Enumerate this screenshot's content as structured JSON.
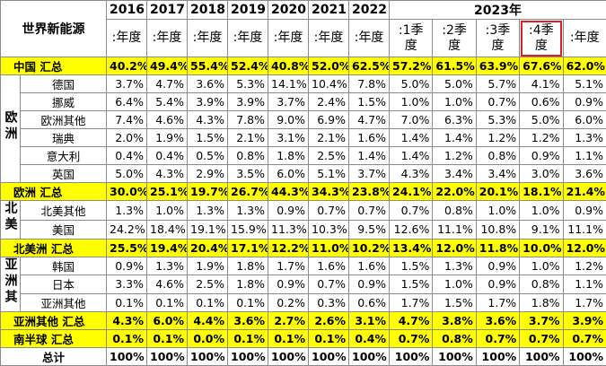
{
  "header": {
    "title": "世界新能源",
    "years": [
      "2016",
      "2017",
      "2018",
      "2019",
      "2020",
      "2021",
      "2022"
    ],
    "year_2023": "2023年",
    "periods": [
      ":年度",
      ":年度",
      ":年度",
      ":年度",
      ":年度",
      ":年度",
      ":年度",
      ":1季度",
      ":2季度",
      ":3季度",
      ":4季度",
      ":年度"
    ]
  },
  "rows": [
    {
      "total": "中国 汇总",
      "values": [
        "40.2%",
        "49.4%",
        "55.4%",
        "52.4%",
        "40.8%",
        "52.0%",
        "62.5%",
        "57.2%",
        "61.5%",
        "63.9%",
        "67.6%",
        "62.0%"
      ]
    },
    {
      "group": "欧洲",
      "rows": [
        {
          "label": "德国",
          "values": [
            "3.7%",
            "4.7%",
            "3.6%",
            "5.3%",
            "14.1%",
            "10.4%",
            "7.8%",
            "5.0%",
            "5.0%",
            "5.7%",
            "4.1%",
            "5.1%"
          ]
        },
        {
          "label": "挪威",
          "values": [
            "6.4%",
            "5.4%",
            "3.9%",
            "3.9%",
            "3.7%",
            "2.4%",
            "1.5%",
            "1.0%",
            "1.0%",
            "0.7%",
            "0.6%",
            "0.9%"
          ]
        },
        {
          "label": "欧洲其他",
          "values": [
            "7.4%",
            "4.6%",
            "4.3%",
            "7.8%",
            "9.0%",
            "6.9%",
            "4.7%",
            "7.0%",
            "6.3%",
            "5.3%",
            "5.0%",
            "6.0%"
          ]
        },
        {
          "label": "瑞典",
          "values": [
            "2.0%",
            "1.9%",
            "1.5%",
            "2.1%",
            "3.1%",
            "2.1%",
            "1.6%",
            "1.4%",
            "1.4%",
            "1.2%",
            "1.2%",
            "1.3%"
          ]
        },
        {
          "label": "意大利",
          "values": [
            "0.4%",
            "0.4%",
            "0.5%",
            "0.8%",
            "1.8%",
            "2.5%",
            "1.4%",
            "1.4%",
            "1.2%",
            "0.8%",
            "0.9%",
            "1.1%"
          ]
        },
        {
          "label": "英国",
          "values": [
            "5.0%",
            "4.3%",
            "2.9%",
            "3.5%",
            "6.0%",
            "5.1%",
            "3.7%",
            "4.3%",
            "3.4%",
            "3.4%",
            "3.0%",
            "3.6%"
          ]
        }
      ]
    },
    {
      "total": "欧洲 汇总",
      "values": [
        "30.0%",
        "25.1%",
        "19.7%",
        "26.7%",
        "44.3%",
        "34.3%",
        "23.8%",
        "24.1%",
        "22.0%",
        "20.1%",
        "18.1%",
        "21.4%"
      ]
    },
    {
      "group": "北美",
      "rows": [
        {
          "label": "北美其他",
          "values": [
            "1.3%",
            "1.0%",
            "1.3%",
            "1.3%",
            "0.9%",
            "0.7%",
            "0.7%",
            "0.7%",
            "0.8%",
            "1.0%",
            "1.0%",
            "0.9%"
          ]
        },
        {
          "label": "美国",
          "values": [
            "24.2%",
            "18.4%",
            "19.1%",
            "15.9%",
            "11.3%",
            "10.3%",
            "9.5%",
            "12.6%",
            "11.1%",
            "10.8%",
            "9.1%",
            "11.1%"
          ]
        }
      ]
    },
    {
      "total": "北美洲 汇总",
      "values": [
        "25.5%",
        "19.4%",
        "20.4%",
        "17.1%",
        "12.2%",
        "11.0%",
        "10.2%",
        "13.4%",
        "12.0%",
        "11.8%",
        "10.0%",
        "12.0%"
      ]
    },
    {
      "group": "亚洲其",
      "rows": [
        {
          "label": "韩国",
          "values": [
            "0.9%",
            "1.3%",
            "1.9%",
            "1.8%",
            "1.7%",
            "1.6%",
            "1.6%",
            "1.5%",
            "1.3%",
            "0.9%",
            "1.0%",
            "1.2%"
          ]
        },
        {
          "label": "日本",
          "values": [
            "3.3%",
            "4.6%",
            "2.5%",
            "1.8%",
            "0.9%",
            "0.7%",
            "0.9%",
            "1.5%",
            "1.0%",
            "0.9%",
            "0.8%",
            "1.1%"
          ]
        },
        {
          "label": "亚洲其他",
          "values": [
            "0.1%",
            "0.1%",
            "0.1%",
            "0.1%",
            "0.2%",
            "0.3%",
            "0.6%",
            "1.7%",
            "1.5%",
            "1.7%",
            "1.8%",
            "1.7%"
          ]
        }
      ]
    },
    {
      "total": "亚洲其他 汇总",
      "values": [
        "4.3%",
        "6.0%",
        "4.4%",
        "3.6%",
        "2.7%",
        "2.6%",
        "3.1%",
        "4.7%",
        "3.8%",
        "3.6%",
        "3.7%",
        "3.9%"
      ]
    },
    {
      "total": "南半球 汇总",
      "values": [
        "0.1%",
        "0.1%",
        "0.0%",
        "0.1%",
        "0.1%",
        "0.1%",
        "0.4%",
        "0.7%",
        "0.8%",
        "0.7%",
        "0.7%",
        "0.7%"
      ]
    },
    {
      "grand_total": "总计",
      "values": [
        "100%",
        "100%",
        "100%",
        "100%",
        "100%",
        "100%",
        "100%",
        "100%",
        "100%",
        "100%",
        "100%",
        "100%"
      ]
    }
  ]
}
